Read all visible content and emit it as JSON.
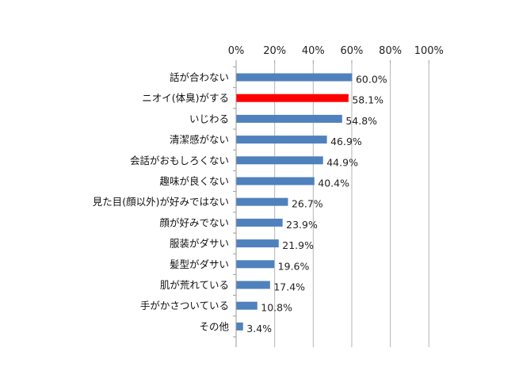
{
  "chart_data": {
    "type": "bar",
    "orientation": "horizontal",
    "categories": [
      "話が合わない",
      "ニオイ(体臭)がする",
      "いじわる",
      "清潔感がない",
      "会話がおもしろくない",
      "趣味が良くない",
      "見た目(顔以外)が好みではない",
      "顔が好みでない",
      "服装がダサい",
      "髪型がダサい",
      "肌が荒れている",
      "手がかさついている",
      "その他"
    ],
    "values": [
      60.0,
      58.1,
      54.8,
      46.9,
      44.9,
      40.4,
      26.7,
      23.9,
      21.9,
      19.6,
      17.4,
      10.8,
      3.4
    ],
    "data_labels": [
      "60.0%",
      "58.1%",
      "54.8%",
      "46.9%",
      "44.9%",
      "40.4%",
      "26.7%",
      "23.9%",
      "21.9%",
      "19.6%",
      "17.4%",
      "10.8%",
      "3.4%"
    ],
    "xlim": [
      0,
      100
    ],
    "x_ticks": [
      0,
      20,
      40,
      60,
      80,
      100
    ],
    "x_tick_labels": [
      "0%",
      "20%",
      "40%",
      "60%",
      "80%",
      "100%"
    ],
    "x_axis_position": "top",
    "grid": true,
    "colors": {
      "default": "#4f81bd",
      "highlight": "#ff0000",
      "highlight_index": 1
    },
    "title": "",
    "xlabel": "",
    "ylabel": ""
  }
}
